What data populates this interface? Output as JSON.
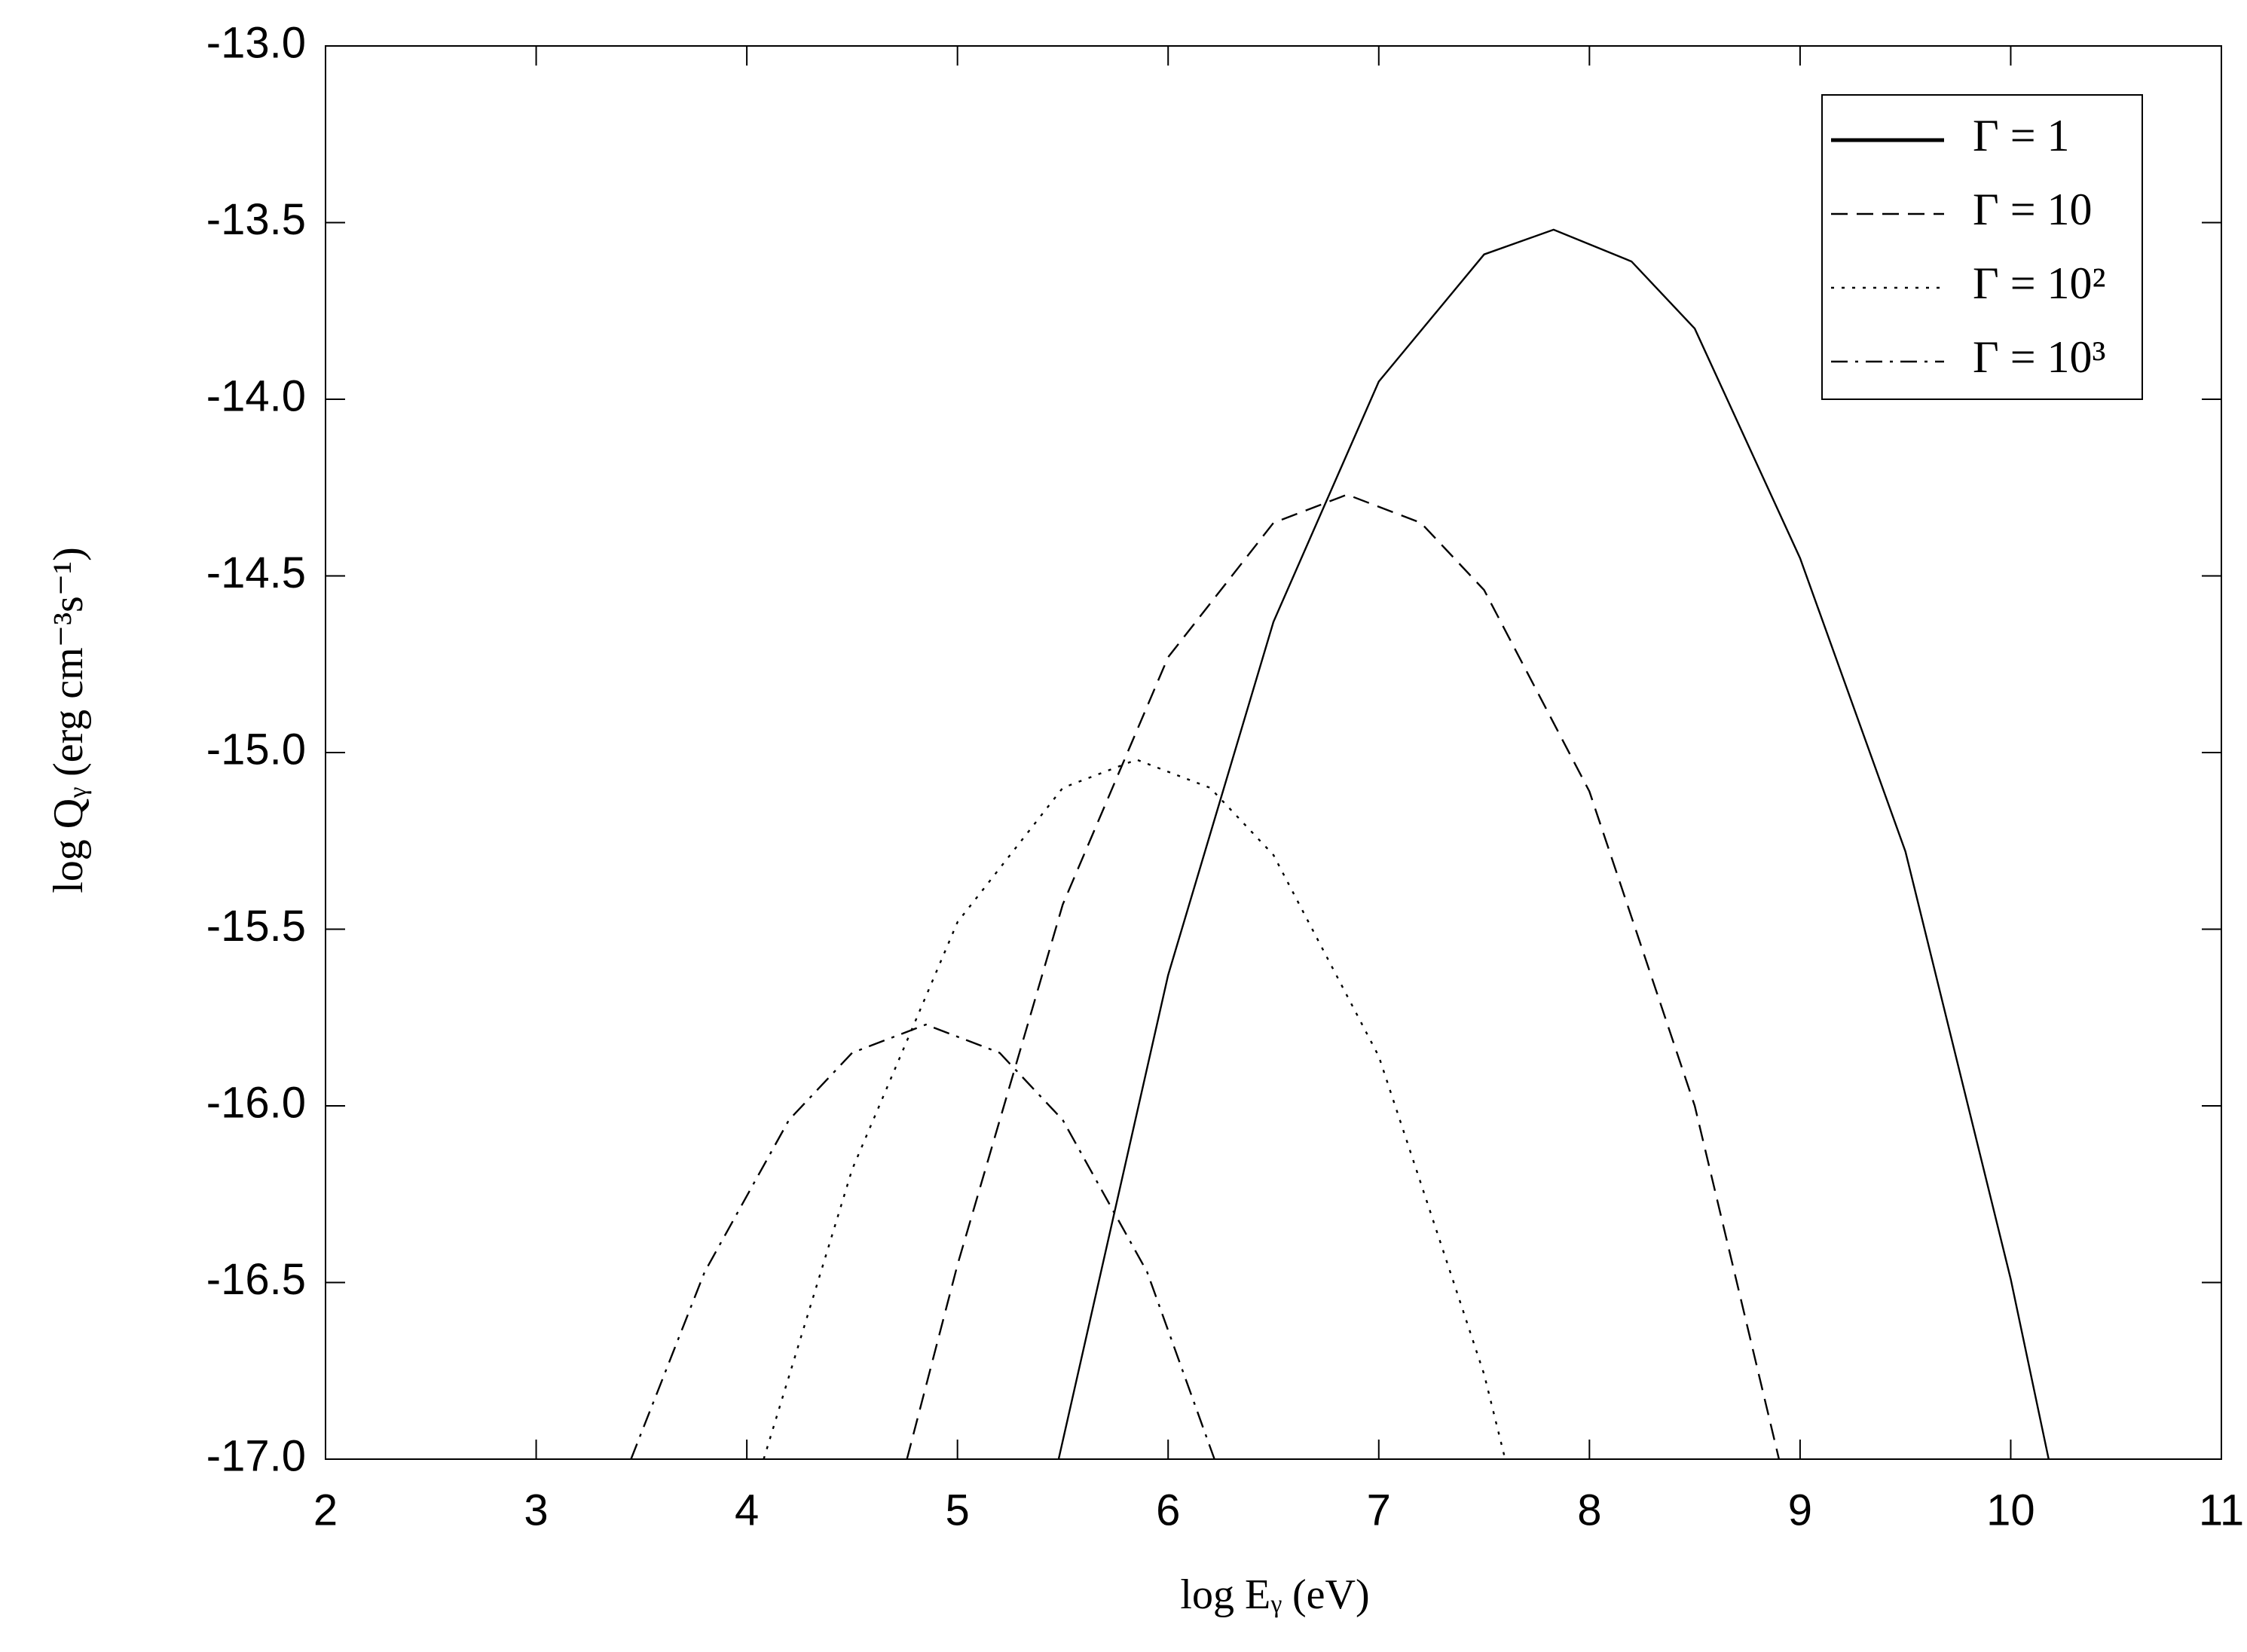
{
  "chart_data": {
    "type": "line",
    "xlabel": "log Eᵧ (eV)",
    "ylabel": "log Qᵧ (erg cm⁻³s⁻¹)",
    "xlim": [
      2,
      11
    ],
    "xticks": [
      2,
      3,
      4,
      5,
      6,
      7,
      8,
      9,
      10,
      11
    ],
    "ylim": [
      -17,
      -13
    ],
    "yticks": [
      {
        "value": -13,
        "label": "-13.0"
      },
      -13.5,
      {
        "value": -14,
        "label": "-14.0"
      },
      -14.5,
      {
        "value": -15,
        "label": "-15.0"
      },
      -15.5,
      {
        "value": -16,
        "label": "-16.0"
      },
      -16.5,
      {
        "value": -17,
        "label": "-17.0"
      }
    ],
    "legend": "upper right",
    "series": [
      {
        "name": "Γ = 1",
        "color": "#000000",
        "dash": "solid",
        "x": [
          5.48,
          6.0,
          6.5,
          7.0,
          7.5,
          7.83,
          8.2,
          8.5,
          9.0,
          9.5,
          10.0,
          10.18
        ],
        "values": [
          -17.0,
          -15.63,
          -14.63,
          -13.95,
          -13.59,
          -13.52,
          -13.61,
          -13.8,
          -14.45,
          -15.28,
          -16.49,
          -17.0
        ]
      },
      {
        "name": "Γ = 10",
        "color": "#000000",
        "dash": "dashed",
        "x": [
          4.76,
          5.0,
          5.5,
          6.0,
          6.5,
          6.85,
          7.2,
          7.5,
          8.0,
          8.5,
          8.9
        ],
        "values": [
          -17.0,
          -16.45,
          -15.43,
          -14.73,
          -14.35,
          -14.27,
          -14.35,
          -14.54,
          -15.11,
          -16.0,
          -17.0
        ]
      },
      {
        "name": "Γ = 10²",
        "color": "#000000",
        "dash": "dotted",
        "x": [
          4.08,
          4.5,
          5.0,
          5.5,
          5.85,
          6.2,
          6.5,
          7.0,
          7.5,
          7.6
        ],
        "values": [
          -17.0,
          -16.18,
          -15.48,
          -15.1,
          -15.02,
          -15.1,
          -15.29,
          -15.86,
          -16.76,
          -17.0
        ]
      },
      {
        "name": "Γ = 10³",
        "color": "#000000",
        "dash": "dashdot",
        "x": [
          3.45,
          3.8,
          4.2,
          4.5,
          4.85,
          5.2,
          5.5,
          5.9,
          6.22
        ],
        "values": [
          -17.0,
          -16.47,
          -16.04,
          -15.85,
          -15.77,
          -15.85,
          -16.04,
          -16.47,
          -17.0
        ]
      }
    ]
  }
}
